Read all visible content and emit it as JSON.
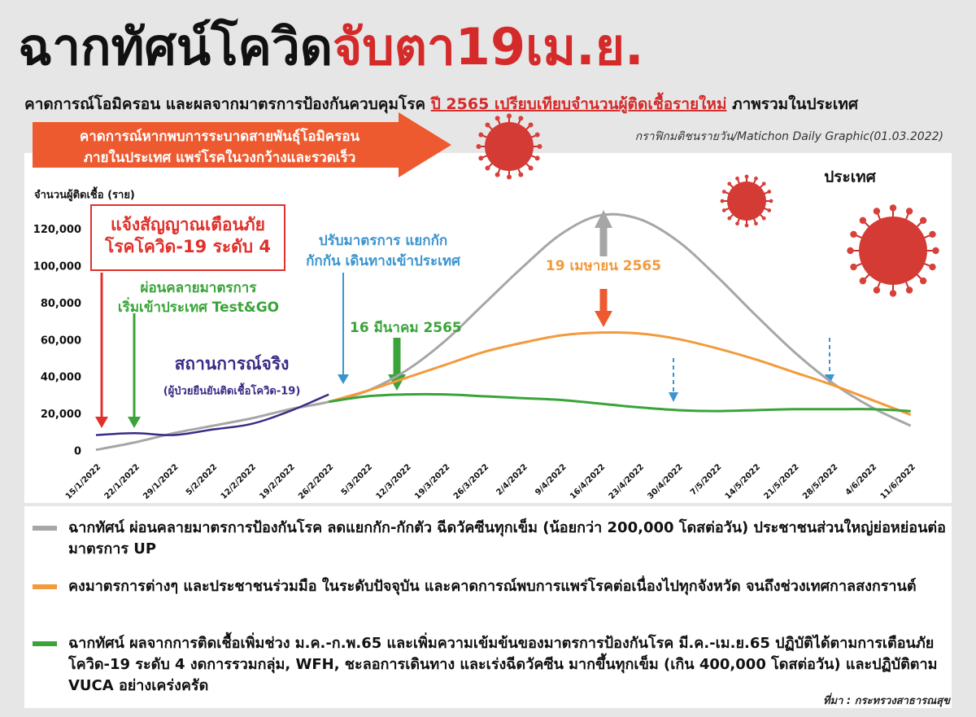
{
  "header": {
    "title": [
      "ฉากทัศน์โควิด",
      "จับตา19เม.ย."
    ],
    "subtitle": [
      {
        "text": "คาดการณ์โอมิครอน และผลจากมาตรการป้องกันควบคุมโรค ",
        "underline": false
      },
      {
        "text": "ปี 2565 เปรียบเทียบจำนวนผู้ติดเชื้อรายใหม่",
        "underline": true
      },
      {
        "text": " ภาพรวมในประเทศ",
        "underline": false
      }
    ],
    "credit": "กราฟิกมติชนรายวัน/Matichon Daily Graphic(01.03.2022)",
    "banner": [
      "คาดการณ์หากพบการระบาดสายพันธุ์โอมิครอน",
      "ภายในประเทศ แพร่โรคในวงกว้างและรวดเร็ว"
    ],
    "source": "ที่มา : กระทรวงสาธารณสุข"
  },
  "chart_data": {
    "type": "line",
    "region": "ประเทศ",
    "ylabel": "จำนวนผู้ติดเชื้อ (ราย)",
    "categories": [
      "15/1/2022",
      "22/1/2022",
      "29/1/2022",
      "5/2/2022",
      "12/2/2022",
      "19/2/2022",
      "26/2/2022",
      "5/3/2022",
      "12/3/2022",
      "19/3/2022",
      "26/3/2022",
      "2/4/2022",
      "9/4/2022",
      "16/4/2022",
      "23/4/2022",
      "30/4/2022",
      "7/5/2022",
      "14/5/2022",
      "21/5/2022",
      "28/5/2022",
      "4/6/2022",
      "11/6/2022"
    ],
    "ylim": [
      0,
      130000
    ],
    "yticks": [
      0,
      {
        "value": 20000,
        "label": "20,000"
      },
      {
        "value": 40000,
        "label": "40,000"
      },
      {
        "value": 60000,
        "label": "60,000"
      },
      {
        "value": 80000,
        "label": "80,000"
      },
      {
        "value": 100000,
        "label": "100,000"
      },
      {
        "value": 120000,
        "label": "120,000"
      }
    ],
    "series": [
      {
        "name": "ฉากทัศน์ ผ่อนคลายมาตรการป้องกันโรค ลดแยกกัก-กักตัว ฉีดวัคซีนทุกเข็ม (น้อยกว่า 200,000 โดสต่อวัน) ประชาชนส่วนใหญ่ย่อหย่อนต่อมาตรการ UP",
        "color": "#a6a6a6",
        "values": [
          1000,
          5000,
          10000,
          14000,
          18000,
          23000,
          27000,
          33000,
          44000,
          60000,
          80000,
          100000,
          118000,
          128000,
          126000,
          114000,
          95000,
          74000,
          54000,
          37000,
          24000,
          14000
        ]
      },
      {
        "name": "คงมาตรการต่างๆ และประชาชนร่วมมือ ในระดับปัจจุบัน และคาดการณ์พบการแพร่โรคต่อเนื่องไปทุกจังหวัด จนถึงช่วงเทศกาลสงกรานต์",
        "color": "#f39a3c",
        "values": [
          null,
          null,
          null,
          null,
          null,
          null,
          27000,
          33000,
          40000,
          47000,
          54000,
          59000,
          63000,
          64500,
          64000,
          61000,
          56000,
          50000,
          43000,
          36000,
          28000,
          20000
        ]
      },
      {
        "name": "ฉากทัศน์ ผลจากการติดเชื้อเพิ่มช่วง ม.ค.-ก.พ.65 และเพิ่มความเข้มข้นของมาตรการป้องกันโรค มี.ค.-เม.ย.65 ปฏิบัติได้ตามการเตือนภัยโควิด-19 ระดับ 4 งดการรวมกลุ่ม, WFH, ชะลอการเดินทาง และเร่งฉีดวัคซีน มากขึ้นทุกเข็ม (เกิน 400,000 โดสต่อวัน) และปฏิบัติตาม VUCA อย่างเคร่งครัด",
        "color": "#3aa43a",
        "values": [
          null,
          null,
          null,
          null,
          null,
          null,
          27000,
          30000,
          31000,
          31000,
          30000,
          29000,
          28000,
          26000,
          24000,
          22500,
          22000,
          22500,
          23000,
          23000,
          23000,
          22000
        ]
      },
      {
        "name": "สถานการณ์จริง",
        "color": "#3b2a86",
        "values": [
          9000,
          10000,
          9000,
          12000,
          15000,
          22000,
          31000,
          null,
          null,
          null,
          null,
          null,
          null,
          null,
          null,
          null,
          null,
          null,
          null,
          null,
          null,
          null
        ]
      }
    ],
    "annotations": [
      {
        "lines": [
          "แจ้งสัญญาณเตือนภัย",
          "โรคโควิด-19 ระดับ 4"
        ],
        "color": "#e0312b"
      },
      {
        "lines": [
          "ผ่อนคลายมาตรการ",
          "เริ่มเข้าประเทศ Test&GO"
        ],
        "color": "#3aa43a"
      },
      {
        "lines": [
          "ปรับมาตรการ แยกกัก",
          "กักกัน เดินทางเข้าประเทศ"
        ],
        "color": "#3b94cf"
      },
      {
        "lines": [
          "16 มีนาคม 2565"
        ],
        "color": "#3aa43a"
      },
      {
        "lines": [
          "19 เมษายน 2565"
        ],
        "color": "#f39a3c"
      },
      {
        "lines": [
          "(ผู้ป่วยยืนยันติดเชื้อโควิด-19)"
        ],
        "color": "#3b2a86"
      }
    ]
  }
}
